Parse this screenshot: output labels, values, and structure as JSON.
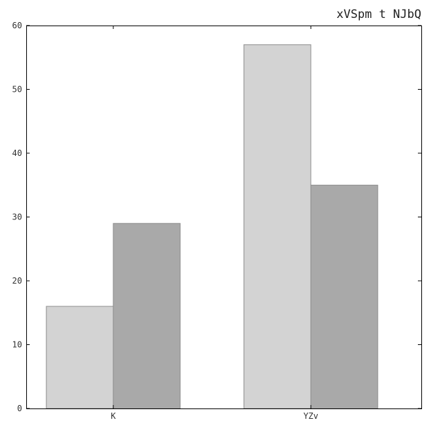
{
  "chart_data": {
    "type": "bar",
    "title": "xVSpm t NJbQ",
    "xlabel": "",
    "ylabel": "",
    "categories": [
      "K",
      "YZv"
    ],
    "series": [
      {
        "values": [
          16,
          29
        ]
      },
      {
        "values": [
          57,
          35
        ]
      }
    ],
    "ylim": [
      0,
      60
    ],
    "yticks": [
      0,
      10,
      20,
      30,
      40,
      50,
      60
    ],
    "grid": false,
    "colors": {
      "bar_light": "#d3d3d3",
      "bar_dark": "#a9a9a9",
      "bar_edge": "#8c8c8c",
      "axis": "#000000"
    }
  }
}
